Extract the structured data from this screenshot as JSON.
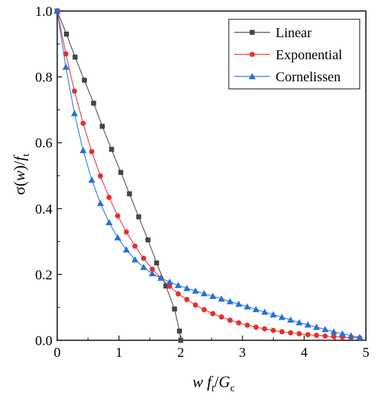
{
  "chart_data": {
    "type": "line",
    "title": "",
    "xlabel": "w f_t/G_c",
    "ylabel": "σ(w)/f_t",
    "xlim": [
      0,
      5
    ],
    "ylim": [
      0,
      1
    ],
    "x_ticks": [
      "0",
      "1",
      "2",
      "3",
      "4",
      "5"
    ],
    "y_ticks": [
      "0.0",
      "0.2",
      "0.4",
      "0.6",
      "0.8",
      "1.0"
    ],
    "grid": false,
    "legend_position": "top-right",
    "series": [
      {
        "name": "Linear",
        "color": "#444444",
        "marker": "square",
        "points": [
          [
            0.0,
            1.0
          ],
          [
            0.15,
            0.93
          ],
          [
            0.29,
            0.86
          ],
          [
            0.44,
            0.79
          ],
          [
            0.59,
            0.72
          ],
          [
            0.73,
            0.65
          ],
          [
            0.88,
            0.58
          ],
          [
            1.03,
            0.51
          ],
          [
            1.17,
            0.445
          ],
          [
            1.32,
            0.375
          ],
          [
            1.47,
            0.305
          ],
          [
            1.61,
            0.235
          ],
          [
            1.76,
            0.165
          ],
          [
            1.9,
            0.095
          ],
          [
            1.98,
            0.028
          ],
          [
            2.0,
            0.0
          ]
        ]
      },
      {
        "name": "Exponential",
        "color": "#e8302a",
        "marker": "circle",
        "points": [
          [
            0.0,
            1.0
          ],
          [
            0.14,
            0.87
          ],
          [
            0.28,
            0.757
          ],
          [
            0.42,
            0.659
          ],
          [
            0.56,
            0.573
          ],
          [
            0.7,
            0.499
          ],
          [
            0.84,
            0.434
          ],
          [
            0.98,
            0.378
          ],
          [
            1.12,
            0.329
          ],
          [
            1.26,
            0.286
          ],
          [
            1.4,
            0.249
          ],
          [
            1.54,
            0.216
          ],
          [
            1.68,
            0.189
          ],
          [
            1.82,
            0.164
          ],
          [
            1.96,
            0.141
          ],
          [
            2.1,
            0.124
          ],
          [
            2.24,
            0.107
          ],
          [
            2.38,
            0.093
          ],
          [
            2.52,
            0.081
          ],
          [
            2.66,
            0.071
          ],
          [
            2.8,
            0.061
          ],
          [
            2.94,
            0.053
          ],
          [
            3.08,
            0.046
          ],
          [
            3.22,
            0.04
          ],
          [
            3.36,
            0.035
          ],
          [
            3.5,
            0.03
          ],
          [
            3.64,
            0.026
          ],
          [
            3.78,
            0.023
          ],
          [
            3.92,
            0.02
          ],
          [
            4.06,
            0.017
          ],
          [
            4.2,
            0.015
          ],
          [
            4.34,
            0.013
          ],
          [
            4.48,
            0.011
          ],
          [
            4.62,
            0.0097
          ],
          [
            4.76,
            0.0085
          ],
          [
            4.9,
            0.0074
          ]
        ]
      },
      {
        "name": "Cornelissen",
        "color": "#2272d8",
        "marker": "triangle",
        "points": [
          [
            0.0,
            1.0
          ],
          [
            0.14,
            0.83
          ],
          [
            0.28,
            0.689
          ],
          [
            0.42,
            0.577
          ],
          [
            0.56,
            0.487
          ],
          [
            0.7,
            0.416
          ],
          [
            0.84,
            0.358
          ],
          [
            0.98,
            0.312
          ],
          [
            1.12,
            0.275
          ],
          [
            1.26,
            0.245
          ],
          [
            1.4,
            0.222
          ],
          [
            1.54,
            0.203
          ],
          [
            1.68,
            0.189
          ],
          [
            1.82,
            0.177
          ],
          [
            1.96,
            0.167
          ],
          [
            2.1,
            0.158
          ],
          [
            2.24,
            0.15
          ],
          [
            2.38,
            0.142
          ],
          [
            2.52,
            0.134
          ],
          [
            2.66,
            0.126
          ],
          [
            2.8,
            0.118
          ],
          [
            2.94,
            0.11
          ],
          [
            3.08,
            0.102
          ],
          [
            3.22,
            0.094
          ],
          [
            3.36,
            0.086
          ],
          [
            3.5,
            0.078
          ],
          [
            3.64,
            0.07
          ],
          [
            3.78,
            0.062
          ],
          [
            3.92,
            0.054
          ],
          [
            4.06,
            0.047
          ],
          [
            4.2,
            0.04
          ],
          [
            4.34,
            0.033
          ],
          [
            4.48,
            0.026
          ],
          [
            4.62,
            0.02
          ],
          [
            4.76,
            0.014
          ],
          [
            4.9,
            0.009
          ]
        ]
      }
    ]
  }
}
